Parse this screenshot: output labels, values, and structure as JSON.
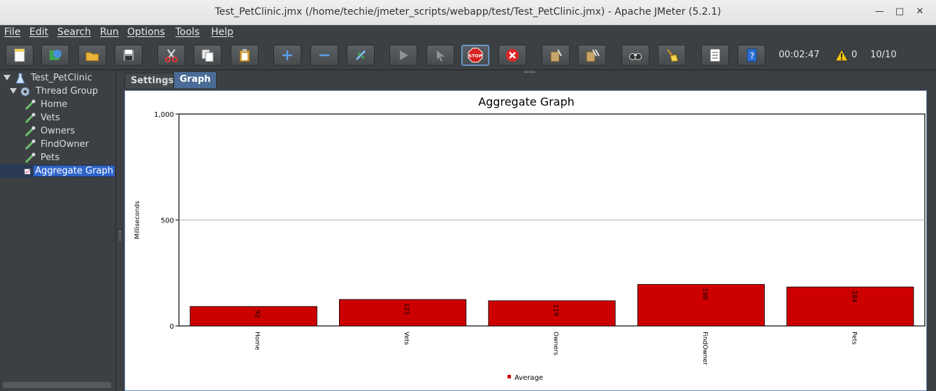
{
  "window": {
    "title": "Test_PetClinic.jmx (/home/techie/jmeter_scripts/webapp/test/Test_PetClinic.jmx) - Apache JMeter (5.2.1)"
  },
  "menu": [
    "File",
    "Edit",
    "Search",
    "Run",
    "Options",
    "Tools",
    "Help"
  ],
  "toolbar": {
    "buttons": [
      "new-icon",
      "templates-icon",
      "open-icon",
      "save-icon",
      "cut-icon",
      "copy-icon",
      "paste-icon",
      "expand-icon",
      "collapse-icon",
      "toggle-icon",
      "start-icon",
      "start-no-pauses-icon",
      "stop-icon",
      "shutdown-icon",
      "clear-icon",
      "clear-all-icon",
      "search-icon",
      "reset-search-icon",
      "function-helper-icon",
      "help-icon"
    ],
    "elapsed": "00:02:47",
    "warnings": "0",
    "threads": "10/10",
    "status_color": "#22b14c"
  },
  "tree": {
    "root": "Test_PetClinic",
    "group": "Thread Group",
    "samplers": [
      "Home",
      "Vets",
      "Owners",
      "FindOwner",
      "Pets"
    ],
    "listener": "Aggregate Graph"
  },
  "tabs": [
    "Settings",
    "Graph"
  ],
  "chart_data": {
    "type": "bar",
    "title": "Aggregate Graph",
    "ylabel": "Milliseconds",
    "categories": [
      "Home",
      "Vets",
      "Owners",
      "FindOwner",
      "Pets"
    ],
    "series": [
      {
        "name": "Average",
        "values": [
          92,
          125,
          119,
          196,
          184
        ]
      }
    ],
    "ylim": [
      0,
      1000
    ],
    "yticks": [
      "0",
      "500",
      "1,000"
    ],
    "grid": true,
    "legend": "bottom",
    "bar_color": "#cc0000"
  }
}
